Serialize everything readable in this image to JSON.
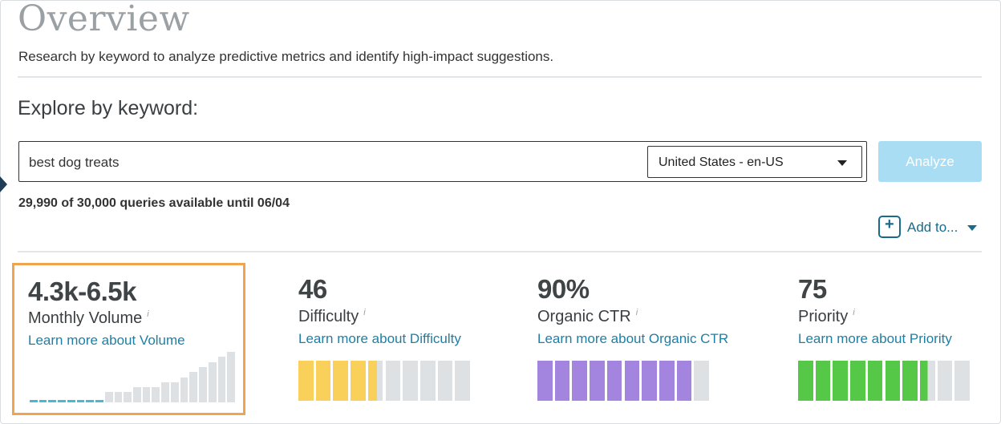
{
  "header": {
    "title": "Overview",
    "subtitle": "Research by keyword to analyze predictive metrics and identify high-impact suggestions."
  },
  "explore": {
    "label": "Explore by keyword:",
    "keyword_value": "best dog treats",
    "locale_selected": "United States - en-US",
    "analyze_label": "Analyze",
    "quota_text": "29,990 of 30,000 queries available until 06/04"
  },
  "actions": {
    "add_to_label": "Add to...",
    "add_icon": "plus-icon",
    "caret_icon": "chevron-down-icon"
  },
  "metrics": [
    {
      "value": "4.3k-6.5k",
      "label": "Monthly Volume",
      "info": "i",
      "link": "Learn more about Volume",
      "chart": {
        "type": "bar",
        "filled_count": 8,
        "values": [
          1,
          1,
          1,
          1,
          1,
          1,
          1,
          1,
          2,
          2,
          2,
          3,
          3,
          3,
          4,
          4,
          5,
          6,
          7,
          8,
          9,
          10
        ]
      },
      "selected": true
    },
    {
      "value": "46",
      "label": "Difficulty",
      "info": "i",
      "link": "Learn more about Difficulty",
      "chart": {
        "type": "segments",
        "total": 10,
        "filled": 4.6
      }
    },
    {
      "value": "90%",
      "label": "Organic CTR",
      "info": "i",
      "link": "Learn more about Organic CTR",
      "chart": {
        "type": "segments",
        "total": 10,
        "filled": 9
      }
    },
    {
      "value": "75",
      "label": "Priority",
      "info": "i",
      "link": "Learn more about Priority",
      "chart": {
        "type": "segments",
        "total": 10,
        "filled": 7.5
      }
    }
  ],
  "colors": {
    "volume_filled": "#45b9d8",
    "volume_empty": "#dde1e3",
    "difficulty": "#f9d05a",
    "organic_ctr": "#a385e0",
    "priority": "#55c947",
    "empty_segment": "#dde1e3",
    "link": "#1c7fa6",
    "selected_border": "#f0a44e",
    "analyze_button": "#a9ddf3"
  }
}
